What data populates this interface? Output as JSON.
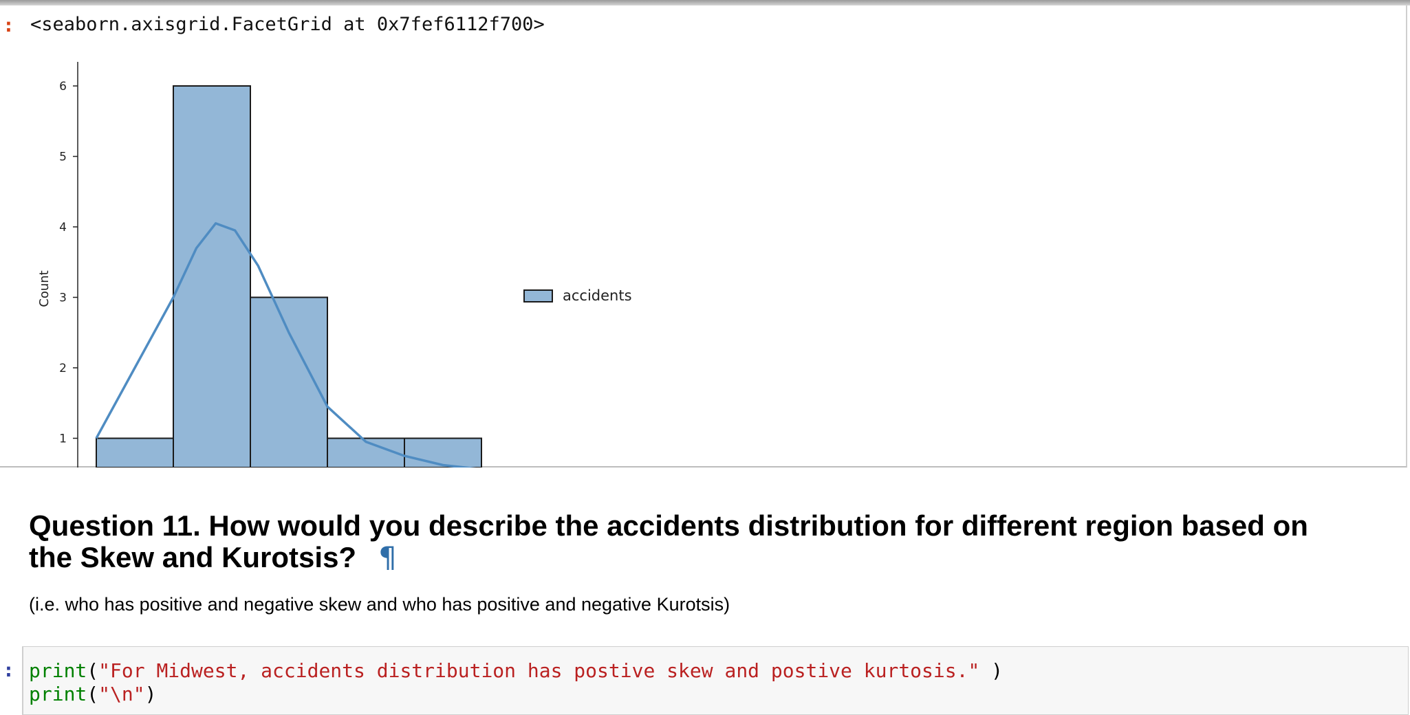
{
  "output": {
    "prompt": ":",
    "repr": "<seaborn.axisgrid.FacetGrid at 0x7fef6112f700>"
  },
  "chart_data": {
    "type": "bar",
    "subtype": "histogram with kde line",
    "ylabel": "Count",
    "yticks": [
      1,
      2,
      3,
      4,
      5,
      6
    ],
    "ylim_visible": [
      0.56,
      6.3
    ],
    "bins": [
      {
        "index": 0,
        "count": 1
      },
      {
        "index": 1,
        "count": 6
      },
      {
        "index": 2,
        "count": 3
      },
      {
        "index": 3,
        "count": 1
      },
      {
        "index": 4,
        "count": 1
      }
    ],
    "kde": [
      {
        "bin": 0.0,
        "y": 1.0
      },
      {
        "bin": 0.5,
        "y": 2.0
      },
      {
        "bin": 1.0,
        "y": 3.0
      },
      {
        "bin": 1.3,
        "y": 3.7
      },
      {
        "bin": 1.55,
        "y": 4.05
      },
      {
        "bin": 1.8,
        "y": 3.95
      },
      {
        "bin": 2.1,
        "y": 3.45
      },
      {
        "bin": 2.5,
        "y": 2.5
      },
      {
        "bin": 3.0,
        "y": 1.45
      },
      {
        "bin": 3.5,
        "y": 0.95
      },
      {
        "bin": 4.0,
        "y": 0.75
      },
      {
        "bin": 4.5,
        "y": 0.62
      },
      {
        "bin": 5.0,
        "y": 0.56
      }
    ],
    "legend": {
      "label": "accidents",
      "position": "right"
    },
    "colors": {
      "bar_fill": "#93b7d7",
      "bar_edge": "#1a1a1a",
      "kde": "#4f8cc2"
    }
  },
  "markdown": {
    "heading_line1": "Question 11. How would you describe the accidents distribution for different region based on",
    "heading_line2": "the Skew and Kurotsis?",
    "pilcrow": "¶",
    "subtext": "(i.e. who has positive and negative skew and who has positive and negative Kurotsis)"
  },
  "code": {
    "prompt": ":",
    "line1_fn": "print",
    "line1_open": "(",
    "line1_str": "\"For Midwest, accidents distribution has postive skew and postive kurtosis.\"",
    "line1_close": " )",
    "line2_fn": "print",
    "line2_open": "(",
    "line2_str": "\"\\n\"",
    "line2_close": ")"
  }
}
